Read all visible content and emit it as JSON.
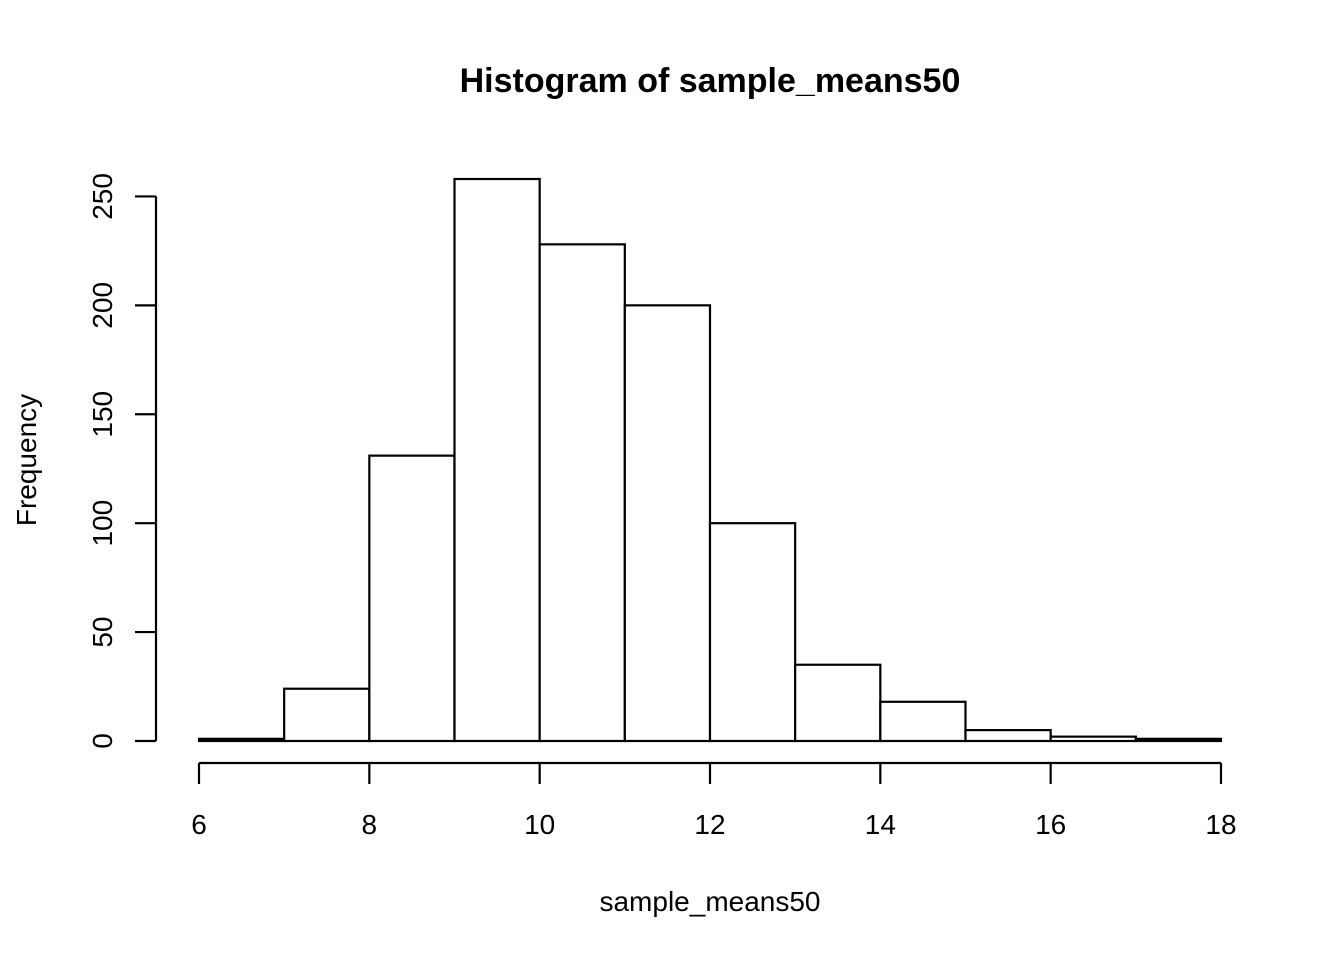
{
  "chart_data": {
    "type": "bar",
    "title": "Histogram of sample_means50",
    "xlabel": "sample_means50",
    "ylabel": "Frequency",
    "bins": [
      {
        "start": 6,
        "end": 7,
        "count": 1
      },
      {
        "start": 7,
        "end": 8,
        "count": 24
      },
      {
        "start": 8,
        "end": 9,
        "count": 131
      },
      {
        "start": 9,
        "end": 10,
        "count": 258
      },
      {
        "start": 10,
        "end": 11,
        "count": 228
      },
      {
        "start": 11,
        "end": 12,
        "count": 200
      },
      {
        "start": 12,
        "end": 13,
        "count": 100
      },
      {
        "start": 13,
        "end": 14,
        "count": 35
      },
      {
        "start": 14,
        "end": 15,
        "count": 18
      },
      {
        "start": 15,
        "end": 16,
        "count": 5
      },
      {
        "start": 16,
        "end": 17,
        "count": 2
      },
      {
        "start": 17,
        "end": 18,
        "count": 1
      }
    ],
    "xlim": [
      6,
      18
    ],
    "ylim": [
      0,
      258
    ],
    "x_ticks": [
      6,
      8,
      10,
      12,
      14,
      16,
      18
    ],
    "y_ticks": [
      0,
      50,
      100,
      150,
      200,
      250
    ],
    "grid": false,
    "legend": "none",
    "bar_fill": "#ffffff",
    "bar_stroke": "#000000"
  }
}
